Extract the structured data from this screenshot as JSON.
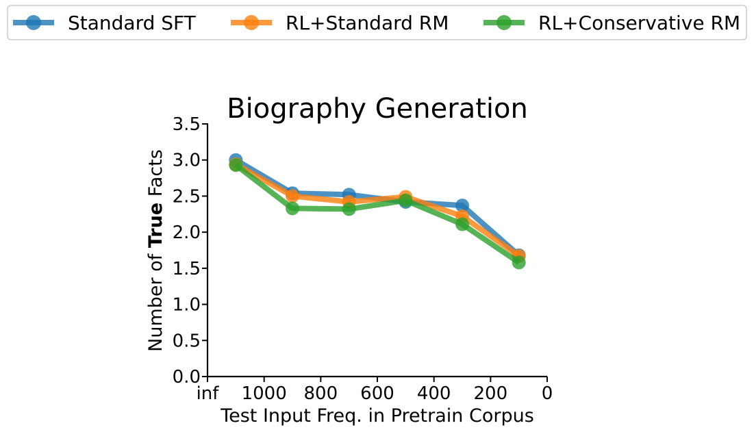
{
  "chart_data": {
    "type": "line",
    "title": "Biography Generation",
    "xlabel": "Test Input Freq. in Pretrain Corpus",
    "ylabel_parts": [
      "Number of ",
      "True",
      " Facts"
    ],
    "x": [
      1100,
      900,
      700,
      500,
      300,
      100
    ],
    "xlim": [
      1200,
      0
    ],
    "xticks": [
      1200,
      1000,
      800,
      600,
      400,
      200,
      0
    ],
    "xtick_labels": [
      "inf",
      "1000",
      "800",
      "600",
      "400",
      "200",
      "0"
    ],
    "ylim": [
      0,
      3.5
    ],
    "yticks": [
      0,
      0.5,
      1.0,
      1.5,
      2.0,
      2.5,
      3.0,
      3.5
    ],
    "ytick_labels": [
      "0.0",
      "0.5",
      "1.0",
      "1.5",
      "2.0",
      "2.5",
      "3.0",
      "3.5"
    ],
    "grid": false,
    "legend_position": "top",
    "series": [
      {
        "name": "Standard SFT",
        "color": "#1f77b4",
        "values": [
          3.0,
          2.54,
          2.52,
          2.42,
          2.37,
          1.68
        ]
      },
      {
        "name": "RL+Standard RM",
        "color": "#ff7f0e",
        "values": [
          2.94,
          2.5,
          2.42,
          2.49,
          2.22,
          1.67
        ]
      },
      {
        "name": "RL+Conservative RM",
        "color": "#2ca02c",
        "values": [
          2.93,
          2.33,
          2.32,
          2.44,
          2.11,
          1.58
        ]
      }
    ]
  }
}
